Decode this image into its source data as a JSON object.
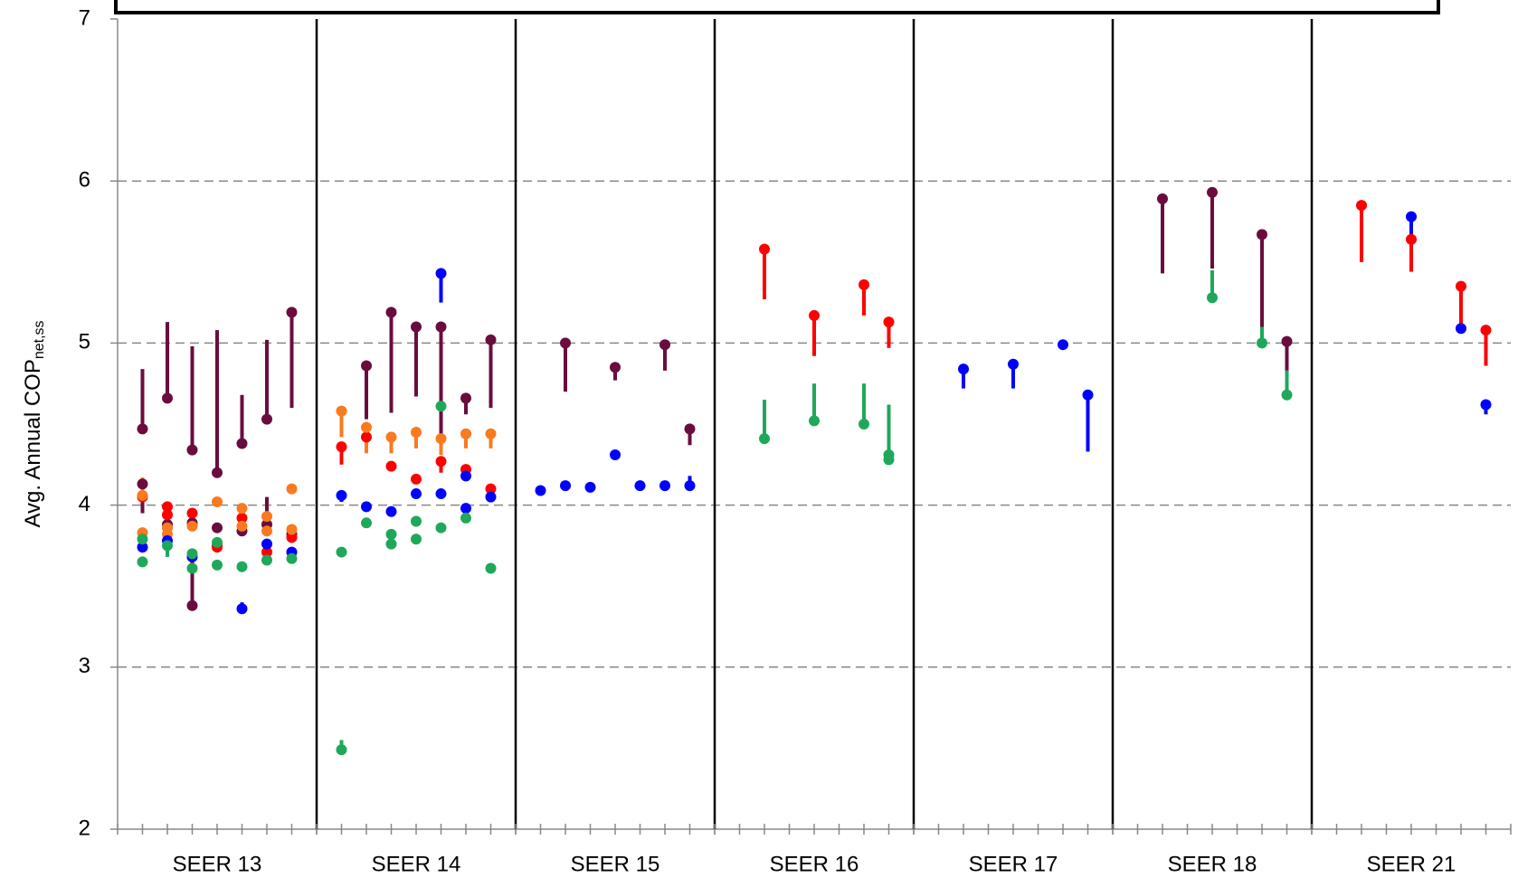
{
  "chart_data": {
    "type": "scatter",
    "y_label": "Avg. Annual COP",
    "y_label_subscript": "net,ss",
    "categories": [
      "SEER 13",
      "SEER 14",
      "SEER 15",
      "SEER 16",
      "SEER 17",
      "SEER 18",
      "SEER 21"
    ],
    "xlim": [
      0,
      56
    ],
    "ylim": [
      2,
      7
    ],
    "yticks": [
      2,
      3,
      4,
      5,
      6,
      7
    ],
    "grid": true,
    "series": [
      {
        "color": "#6a0d3e",
        "x": [
          1,
          1,
          2,
          2,
          3,
          3,
          3,
          4,
          4,
          5,
          5,
          6,
          6,
          7,
          7,
          10,
          11,
          12,
          13,
          14,
          15,
          18,
          20,
          22,
          23,
          42,
          44,
          46,
          47
        ],
        "values": [
          4.47,
          4.13,
          4.66,
          3.88,
          4.34,
          3.89,
          3.38,
          4.2,
          3.86,
          4.38,
          3.84,
          4.53,
          3.88,
          5.19,
          3.82,
          4.86,
          5.19,
          5.1,
          5.1,
          4.66,
          5.02,
          5.0,
          4.85,
          4.99,
          4.47,
          5.89,
          5.93,
          5.67,
          5.01
        ],
        "ends": [
          4.84,
          3.95,
          5.13,
          null,
          4.98,
          null,
          3.72,
          5.08,
          null,
          4.68,
          null,
          5.02,
          4.05,
          4.6,
          null,
          4.53,
          4.57,
          4.67,
          4.4,
          4.56,
          4.6,
          4.7,
          4.77,
          4.83,
          4.37,
          5.43,
          5.46,
          5.1,
          4.83
        ]
      },
      {
        "color": "#ff0000",
        "x": [
          1,
          2,
          2,
          3,
          4,
          4,
          5,
          6,
          7,
          9,
          10,
          11,
          12,
          13,
          14,
          15,
          26,
          28,
          30,
          31,
          50,
          52,
          54,
          55
        ],
        "values": [
          4.05,
          3.99,
          3.94,
          3.95,
          3.75,
          3.74,
          3.92,
          3.71,
          3.8,
          4.36,
          4.42,
          4.24,
          4.16,
          4.27,
          4.22,
          4.1,
          5.58,
          5.17,
          5.36,
          5.13,
          5.85,
          5.64,
          5.35,
          5.08
        ],
        "ends": [
          null,
          null,
          null,
          null,
          null,
          null,
          null,
          null,
          null,
          4.25,
          4.33,
          null,
          null,
          4.2,
          null,
          null,
          5.27,
          4.92,
          5.17,
          4.97,
          5.5,
          5.44,
          5.12,
          4.86
        ]
      },
      {
        "color": "#f97a1f",
        "x": [
          1,
          1,
          2,
          2,
          3,
          4,
          5,
          5,
          6,
          6,
          7,
          7,
          9,
          10,
          11,
          12,
          13,
          14,
          15
        ],
        "values": [
          4.06,
          3.83,
          3.86,
          3.82,
          3.87,
          4.02,
          3.98,
          3.87,
          3.93,
          3.84,
          4.1,
          3.85,
          4.58,
          4.48,
          4.42,
          4.45,
          4.41,
          4.44,
          4.44
        ],
        "ends": [
          4.17,
          null,
          null,
          null,
          null,
          null,
          null,
          null,
          null,
          null,
          null,
          null,
          4.42,
          4.32,
          4.32,
          4.35,
          4.31,
          4.35,
          4.35
        ]
      },
      {
        "color": "#0000ff",
        "x": [
          1,
          2,
          3,
          5,
          6,
          7,
          9,
          10,
          11,
          12,
          13,
          13,
          14,
          14,
          15,
          17,
          18,
          19,
          20,
          21,
          22,
          23,
          34,
          36,
          38,
          39,
          52,
          54,
          55
        ],
        "values": [
          3.74,
          3.78,
          3.68,
          3.36,
          3.76,
          3.71,
          4.06,
          3.99,
          3.96,
          4.07,
          5.43,
          4.07,
          4.18,
          3.98,
          4.05,
          4.09,
          4.12,
          4.11,
          4.31,
          4.12,
          4.12,
          4.12,
          4.84,
          4.87,
          4.99,
          4.68,
          5.78,
          5.09,
          4.62
        ],
        "ends": [
          null,
          null,
          null,
          3.4,
          null,
          null,
          4.02,
          null,
          null,
          null,
          5.25,
          null,
          null,
          null,
          null,
          null,
          null,
          null,
          null,
          4.15,
          null,
          4.18,
          4.72,
          4.72,
          null,
          4.33,
          5.64,
          null,
          4.56
        ]
      },
      {
        "color": "#1fa85a",
        "x": [
          1,
          1,
          2,
          3,
          3,
          4,
          4,
          5,
          6,
          7,
          9,
          9,
          10,
          11,
          11,
          12,
          12,
          13,
          13,
          14,
          15,
          26,
          28,
          30,
          31,
          31,
          44,
          46,
          47
        ],
        "values": [
          3.79,
          3.65,
          3.75,
          3.7,
          3.61,
          3.77,
          3.63,
          3.62,
          3.66,
          3.67,
          3.71,
          2.49,
          3.89,
          3.82,
          3.76,
          3.9,
          3.79,
          4.61,
          3.86,
          3.92,
          3.61,
          4.41,
          4.52,
          4.5,
          4.31,
          4.28,
          5.28,
          5.0,
          4.68
        ],
        "ends": [
          null,
          null,
          3.68,
          null,
          null,
          null,
          null,
          3.65,
          null,
          null,
          null,
          2.55,
          3.86,
          null,
          null,
          null,
          null,
          null,
          null,
          null,
          null,
          4.65,
          4.75,
          4.75,
          4.62,
          null,
          5.45,
          5.1,
          4.83
        ]
      }
    ]
  }
}
